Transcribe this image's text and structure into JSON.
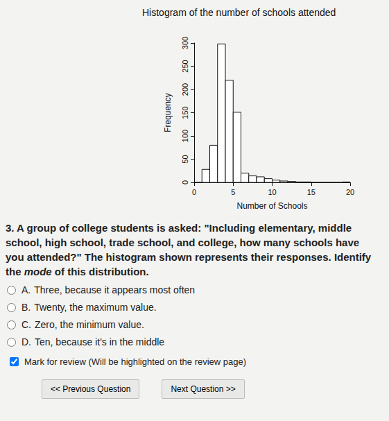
{
  "chart_data": {
    "type": "histogram",
    "title": "Histogram of the number of schools attended",
    "x_label": "Number of Schools",
    "y_label": "Frequency",
    "bins": [
      0,
      1,
      2,
      3,
      4,
      5,
      6,
      7,
      8,
      9,
      10,
      11,
      12,
      13,
      14,
      15,
      16,
      17,
      18,
      19,
      20
    ],
    "counts": [
      0,
      28,
      80,
      298,
      220,
      151,
      20,
      14,
      12,
      8,
      5,
      3,
      2,
      1,
      1,
      0,
      0,
      0,
      0,
      1
    ],
    "color": "#ffffff",
    "xlim": [
      0,
      20
    ],
    "xticks": [
      0,
      5,
      10,
      15,
      20
    ],
    "ylim": [
      0,
      300
    ],
    "yticks": [
      0,
      50,
      100,
      150,
      200,
      250,
      300
    ],
    "grid": false
  },
  "question": {
    "text": "3. A group of college students is asked: \"Including elementary, middle school, high school, trade school, and college, how many schools have you attended?\" The histogram shown represents their responses. Identify the",
    "emphasis": "mode",
    "text_end": "of this distribution.",
    "options": [
      {
        "letter": "A.",
        "text": "Three, because it appears most often"
      },
      {
        "letter": "B.",
        "text": "Twenty, the maximum value."
      },
      {
        "letter": "C.",
        "text": "Zero, the minimum value."
      },
      {
        "letter": "D.",
        "text": "Ten, because it's in the middle"
      }
    ]
  },
  "review": {
    "label": "Mark for review (Will be highlighted on the review page)",
    "checked": true
  },
  "buttons": [
    "<< Previous Question",
    "Next Question >>"
  ]
}
